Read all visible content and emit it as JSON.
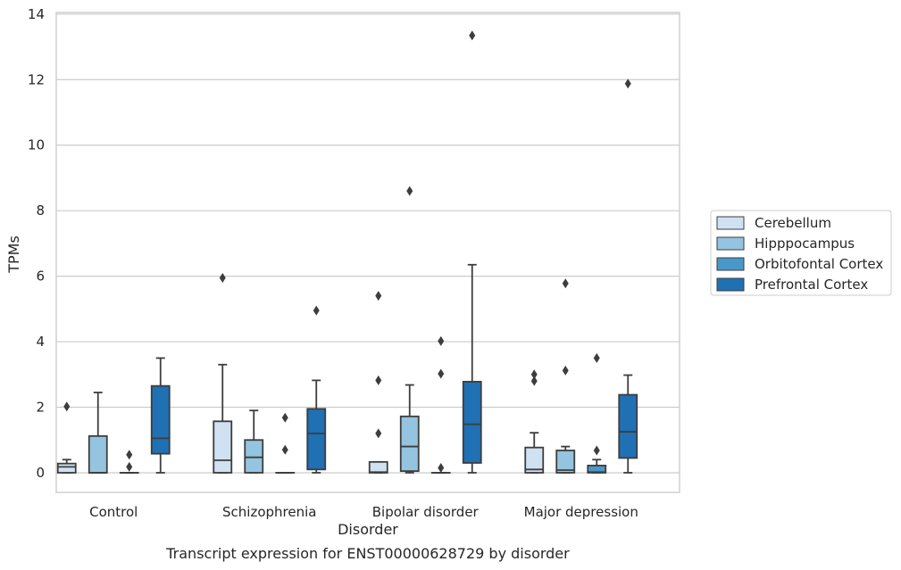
{
  "chart_data": {
    "type": "box",
    "caption": "Transcript expression for ENST00000628729 by disorder",
    "xlabel": "Disorder",
    "ylabel": "TPMs",
    "ylim": [
      -0.6,
      14.05
    ],
    "yticks": [
      0,
      2,
      4,
      6,
      8,
      10,
      12,
      14
    ],
    "ytick_labels": [
      "0",
      "2",
      "4",
      "6",
      "8",
      "10",
      "12",
      "14"
    ],
    "grid": "horizontal",
    "legend_position": "right",
    "categories": [
      "Control",
      "Schizophrenia",
      "Bipolar disorder",
      "Major depression"
    ],
    "series": [
      {
        "name": "Cerebellum",
        "color": "#d0e1f2",
        "boxes": [
          {
            "q1": 0,
            "median": 0.18,
            "q3": 0.28,
            "whisker_low": 0,
            "whisker_high": 0.4,
            "outliers": [
              2.02
            ]
          },
          {
            "q1": 0,
            "median": 0.38,
            "q3": 1.57,
            "whisker_low": 0,
            "whisker_high": 3.3,
            "outliers": [
              5.95
            ]
          },
          {
            "q1": 0,
            "median": 0.02,
            "q3": 0.33,
            "whisker_low": 0,
            "whisker_high": 0.33,
            "outliers": [
              1.2,
              2.82,
              5.4
            ]
          },
          {
            "q1": 0,
            "median": 0.1,
            "q3": 0.77,
            "whisker_low": 0,
            "whisker_high": 1.22,
            "outliers": [
              2.8,
              3.0
            ]
          }
        ]
      },
      {
        "name": "Hipppocampus",
        "color": "#94c4df",
        "boxes": [
          {
            "q1": 0,
            "median": 0,
            "q3": 1.12,
            "whisker_low": 0,
            "whisker_high": 2.45,
            "outliers": []
          },
          {
            "q1": 0,
            "median": 0.47,
            "q3": 1.0,
            "whisker_low": 0,
            "whisker_high": 1.9,
            "outliers": []
          },
          {
            "q1": 0.05,
            "median": 0.8,
            "q3": 1.72,
            "whisker_low": 0,
            "whisker_high": 2.68,
            "outliers": [
              8.6
            ]
          },
          {
            "q1": 0,
            "median": 0.08,
            "q3": 0.68,
            "whisker_low": 0,
            "whisker_high": 0.8,
            "outliers": [
              3.12,
              5.78
            ]
          }
        ]
      },
      {
        "name": "Orbitofontal Cortex",
        "color": "#4a98c9",
        "boxes": [
          {
            "q1": 0,
            "median": 0,
            "q3": 0,
            "whisker_low": 0,
            "whisker_high": 0,
            "outliers": [
              0.18,
              0.55
            ]
          },
          {
            "q1": 0,
            "median": 0,
            "q3": 0,
            "whisker_low": 0,
            "whisker_high": 0,
            "outliers": [
              0.7,
              1.68
            ]
          },
          {
            "q1": 0,
            "median": 0,
            "q3": 0,
            "whisker_low": 0,
            "whisker_high": 0,
            "outliers": [
              0.15,
              3.02,
              4.02
            ]
          },
          {
            "q1": 0,
            "median": 0.02,
            "q3": 0.22,
            "whisker_low": 0,
            "whisker_high": 0.4,
            "outliers": [
              0.68,
              3.5
            ]
          }
        ]
      },
      {
        "name": "Prefrontal Cortex",
        "color": "#2070b4",
        "boxes": [
          {
            "q1": 0.58,
            "median": 1.05,
            "q3": 2.65,
            "whisker_low": 0,
            "whisker_high": 3.5,
            "outliers": []
          },
          {
            "q1": 0.1,
            "median": 1.2,
            "q3": 1.95,
            "whisker_low": 0,
            "whisker_high": 2.82,
            "outliers": [
              4.95
            ]
          },
          {
            "q1": 0.3,
            "median": 1.48,
            "q3": 2.78,
            "whisker_low": 0,
            "whisker_high": 6.35,
            "outliers": [
              13.35
            ]
          },
          {
            "q1": 0.45,
            "median": 1.25,
            "q3": 2.38,
            "whisker_low": 0,
            "whisker_high": 2.98,
            "outliers": [
              11.88
            ]
          }
        ]
      }
    ],
    "colors": {
      "box_edge": "#3d3d3d",
      "grid": "#cccccc",
      "axes_edge": "#cccccc"
    }
  }
}
